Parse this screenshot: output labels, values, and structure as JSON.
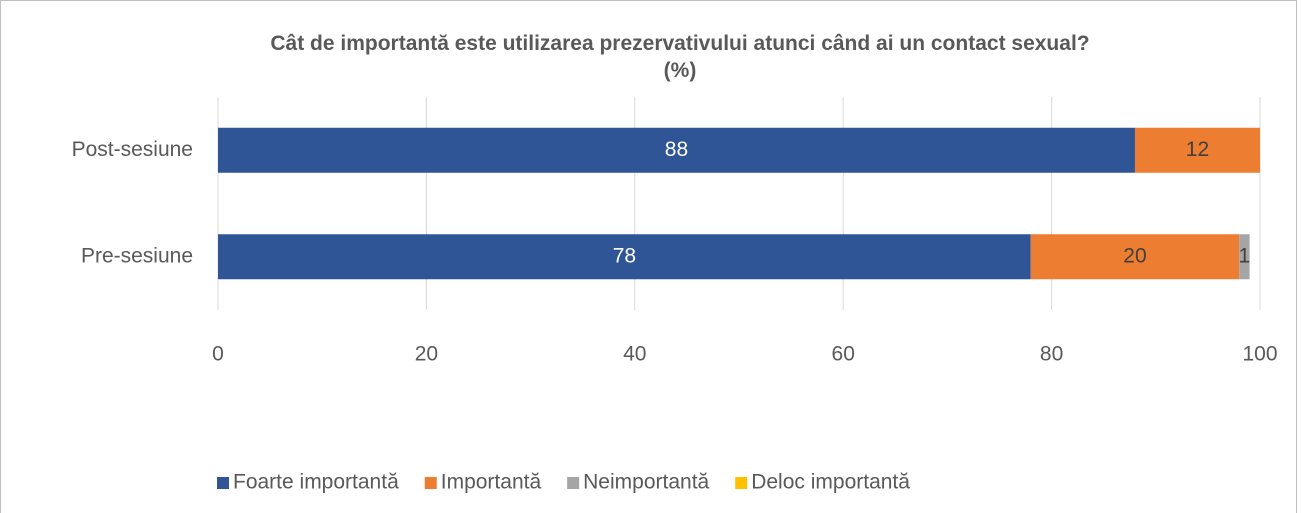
{
  "chart_data": {
    "type": "stacked-bar-horizontal",
    "title": "Cât de importantă este utilizarea prezervativului atunci când ai un contact sexual? (%)",
    "categories": [
      "Post-sesiune",
      "Pre-sesiune"
    ],
    "series": [
      {
        "name": "Foarte importantă",
        "color": "#2f5597",
        "values": [
          88,
          78
        ]
      },
      {
        "name": "Importantă",
        "color": "#ed7d31",
        "values": [
          12,
          20
        ]
      },
      {
        "name": "Neimportantă",
        "color": "#a5a5a5",
        "values": [
          0,
          1
        ]
      },
      {
        "name": "Deloc importantă",
        "color": "#ffc000",
        "values": [
          0,
          0
        ]
      }
    ],
    "xlim": [
      0,
      100
    ],
    "xticks": [
      0,
      20,
      40,
      60,
      80,
      100
    ],
    "grid": true,
    "legend": "bottom"
  }
}
